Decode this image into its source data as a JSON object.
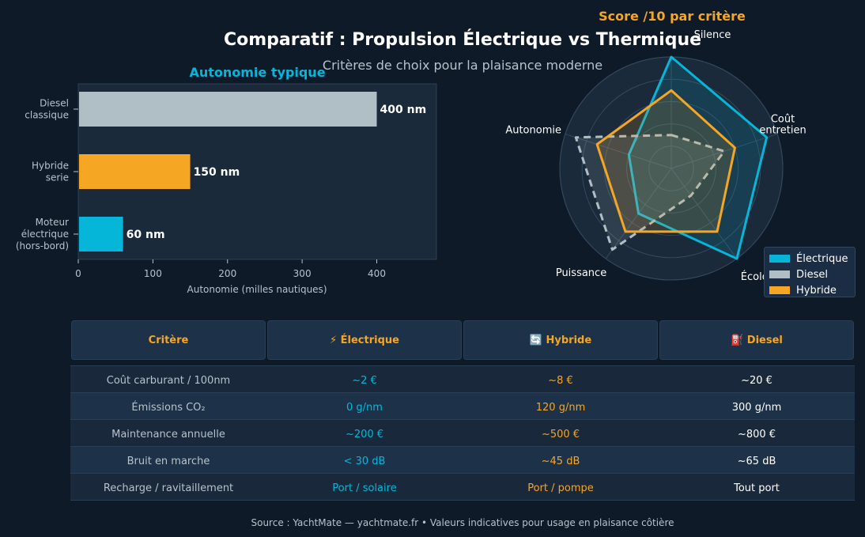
{
  "header": {
    "title": "Comparatif : Propulsion Électrique vs Thermique",
    "subtitle": "Critères de choix pour la plaisance moderne"
  },
  "chart_data": [
    {
      "type": "bar",
      "orientation": "horizontal",
      "title": "Autonomie typique",
      "xlabel": "Autonomie (milles nautiques)",
      "ylabel": "",
      "xlim": [
        0,
        480
      ],
      "xticks": [
        0,
        100,
        200,
        300,
        400
      ],
      "categories": [
        "Diesel\nclassique",
        "Hybride\nserie",
        "Moteur\nélectrique\n(hors-bord)"
      ],
      "values": [
        400,
        150,
        60
      ],
      "value_labels": [
        "400 nm",
        "150 nm",
        "60 nm"
      ],
      "colors": [
        "#b0bec5",
        "#f5a623",
        "#06b6d9"
      ],
      "grid": false
    },
    {
      "type": "radar",
      "title": "Score /10 par critère",
      "axes": [
        "Silence",
        "Coût\nentretien",
        "Écologie",
        "Puissance",
        "Autonomie"
      ],
      "range": [
        0,
        10
      ],
      "rings": [
        2,
        4,
        6,
        8,
        10
      ],
      "series": [
        {
          "name": "Électrique",
          "values": [
            10,
            9,
            10,
            5,
            4
          ],
          "color": "#06b6d9",
          "style": "solid"
        },
        {
          "name": "Diesel",
          "values": [
            3,
            5,
            3,
            9,
            9
          ],
          "color": "#b0bec5",
          "style": "dashed"
        },
        {
          "name": "Hybride",
          "values": [
            7,
            6,
            7,
            7,
            7
          ],
          "color": "#f5a623",
          "style": "solid"
        }
      ],
      "legend_position": "bottom-right"
    }
  ],
  "table": {
    "headers": [
      "Critère",
      "⚡ Électrique",
      "🔄 Hybride",
      "⛽ Diesel"
    ],
    "rows": [
      [
        "Coût carburant / 100nm",
        "~2 €",
        "~8 €",
        "~20 €"
      ],
      [
        "Émissions CO₂",
        "0 g/nm",
        "120 g/nm",
        "300 g/nm"
      ],
      [
        "Maintenance annuelle",
        "~200 €",
        "~500 €",
        "~800 €"
      ],
      [
        "Bruit en marche",
        "< 30 dB",
        "~45 dB",
        "~65 dB"
      ],
      [
        "Recharge / ravitaillement",
        "Port / solaire",
        "Port / pompe",
        "Tout port"
      ]
    ]
  },
  "footer": "Source : YachtMate — yachtmate.fr  •  Valeurs indicatives pour usage en plaisance côtière"
}
